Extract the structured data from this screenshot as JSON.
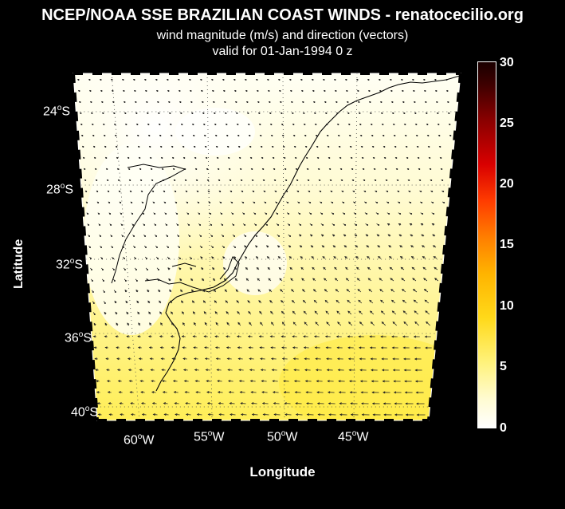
{
  "title": "NCEP/NOAA SSE BRAZILIAN COAST WINDS - renatocecilio.org",
  "subtitle": "wind magnitude (m/s) and direction (vectors)",
  "valid_line": "valid for 01-Jan-1994  0 z",
  "axes": {
    "ylabel": "Latitude",
    "xlabel": "Longitude",
    "lat_ticks": [
      {
        "deg": "24",
        "hem": "S"
      },
      {
        "deg": "28",
        "hem": "S"
      },
      {
        "deg": "32",
        "hem": "S"
      },
      {
        "deg": "36",
        "hem": "S"
      },
      {
        "deg": "40",
        "hem": "S"
      }
    ],
    "lon_ticks": [
      {
        "deg": "60",
        "hem": "W"
      },
      {
        "deg": "55",
        "hem": "W"
      },
      {
        "deg": "50",
        "hem": "W"
      },
      {
        "deg": "45",
        "hem": "W"
      }
    ]
  },
  "colorbar": {
    "range": [
      0,
      30
    ],
    "ticks": [
      "0",
      "5",
      "10",
      "15",
      "20",
      "25",
      "30"
    ],
    "colors": [
      "#ffffff",
      "#fff27a",
      "#ffb400",
      "#ff3c00",
      "#d90000",
      "#3d0000"
    ]
  }
}
